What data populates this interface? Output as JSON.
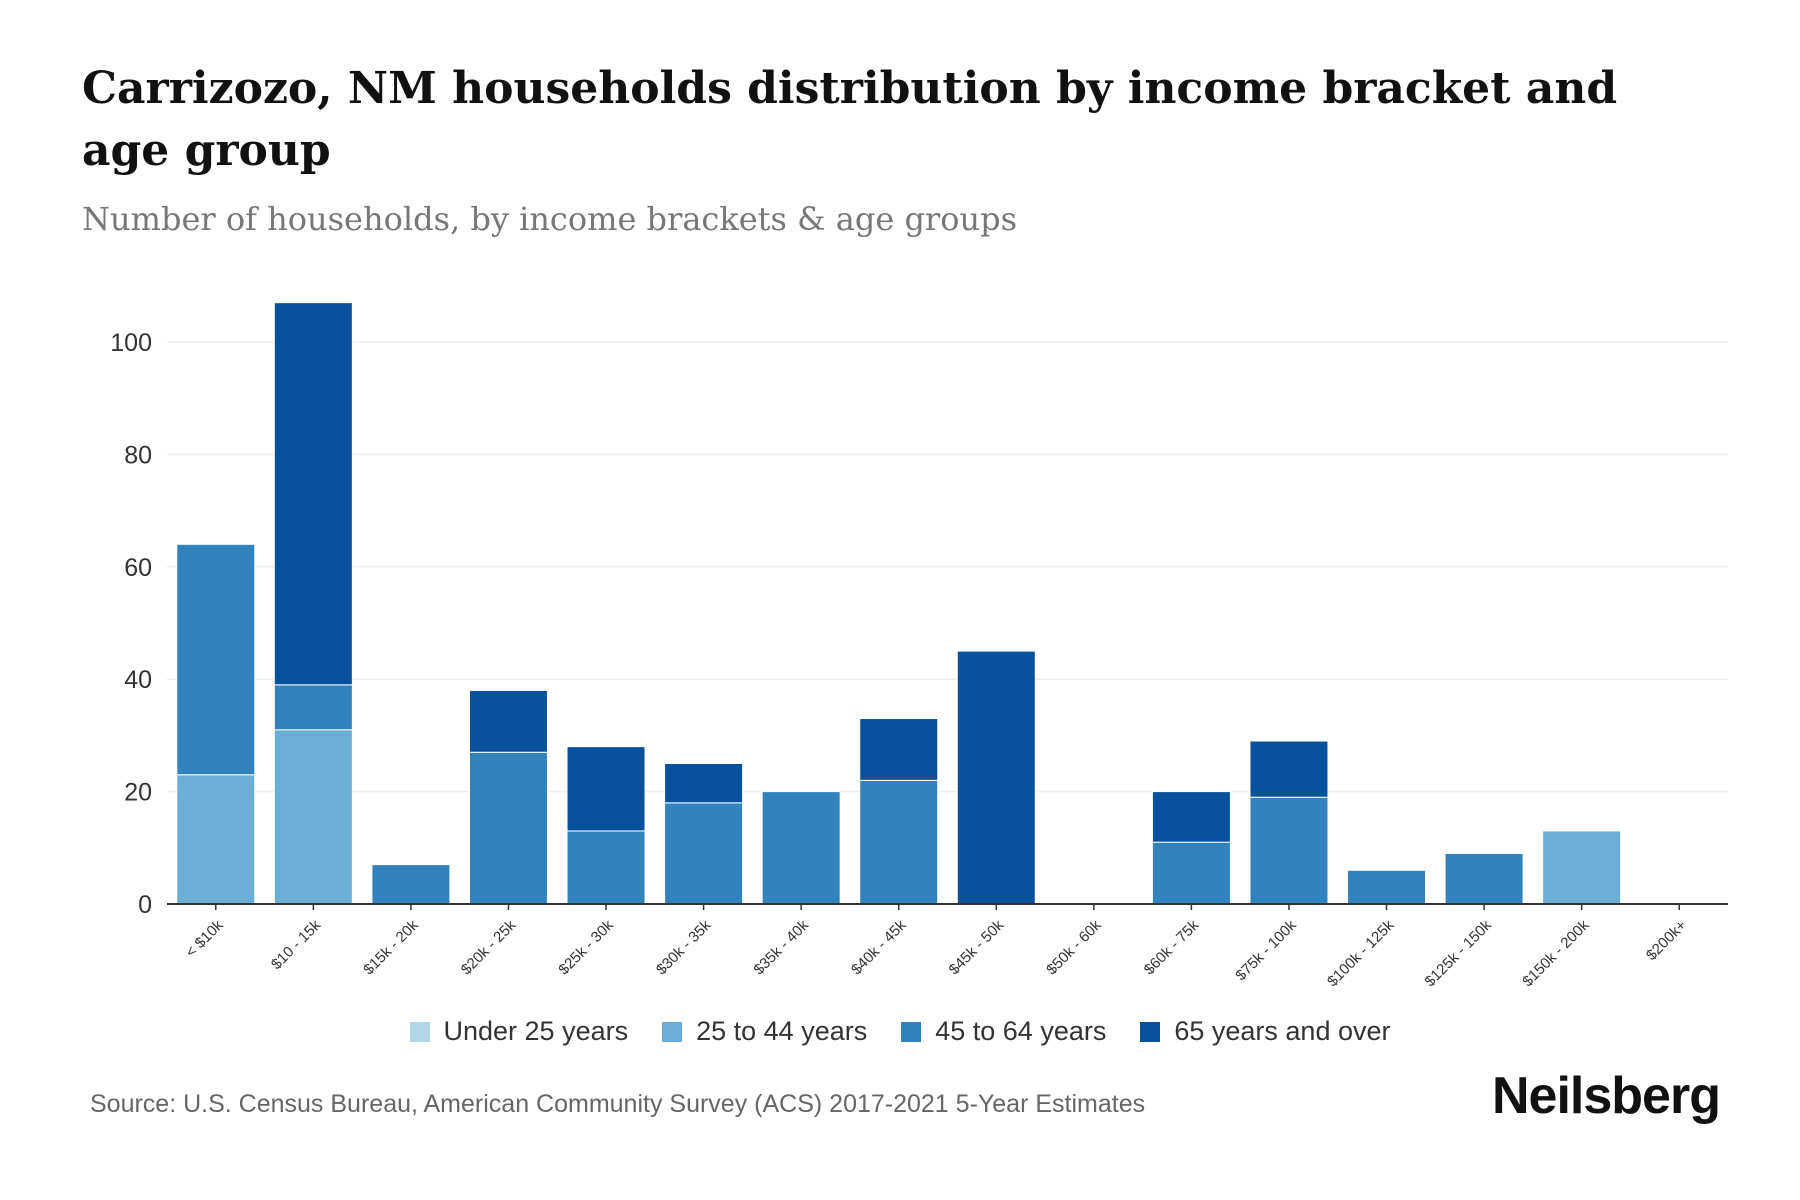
{
  "title": "Carrizozo, NM households distribution by income bracket and age group",
  "subtitle": "Number of households, by income brackets & age groups",
  "source": "Source: U.S. Census Bureau, American Community Survey (ACS) 2017-2021 5-Year Estimates",
  "logo": "Neilsberg",
  "chart_data": {
    "type": "bar",
    "stacked": true,
    "categories": [
      "< $10k",
      "$10 - 15k",
      "$15k - 20k",
      "$20k - 25k",
      "$25k - 30k",
      "$30k - 35k",
      "$35k - 40k",
      "$40k - 45k",
      "$45k - 50k",
      "$50k - 60k",
      "$60k - 75k",
      "$75k - 100k",
      "$100k - 125k",
      "$125k - 150k",
      "$150k - 200k",
      "$200k+"
    ],
    "series": [
      {
        "name": "Under 25 years",
        "color": "#b3d5e8",
        "values": [
          0,
          0,
          0,
          0,
          0,
          0,
          0,
          0,
          0,
          0,
          0,
          0,
          0,
          0,
          0,
          0
        ]
      },
      {
        "name": "25 to 44 years",
        "color": "#6baed6",
        "values": [
          23,
          31,
          0,
          0,
          0,
          0,
          0,
          0,
          0,
          0,
          0,
          0,
          0,
          0,
          13,
          0
        ]
      },
      {
        "name": "45 to 64 years",
        "color": "#3182bd",
        "values": [
          41,
          8,
          7,
          27,
          13,
          18,
          20,
          22,
          0,
          0,
          11,
          19,
          6,
          9,
          0,
          0
        ]
      },
      {
        "name": "65 years and over",
        "color": "#08519c",
        "values": [
          0,
          68,
          0,
          11,
          15,
          7,
          0,
          11,
          45,
          0,
          9,
          10,
          0,
          0,
          0,
          0
        ]
      }
    ],
    "yticks": [
      0,
      20,
      40,
      60,
      80,
      100
    ],
    "ylim": [
      0,
      110
    ],
    "grid": true,
    "legend": "bottom",
    "xlabel": "",
    "ylabel": ""
  }
}
